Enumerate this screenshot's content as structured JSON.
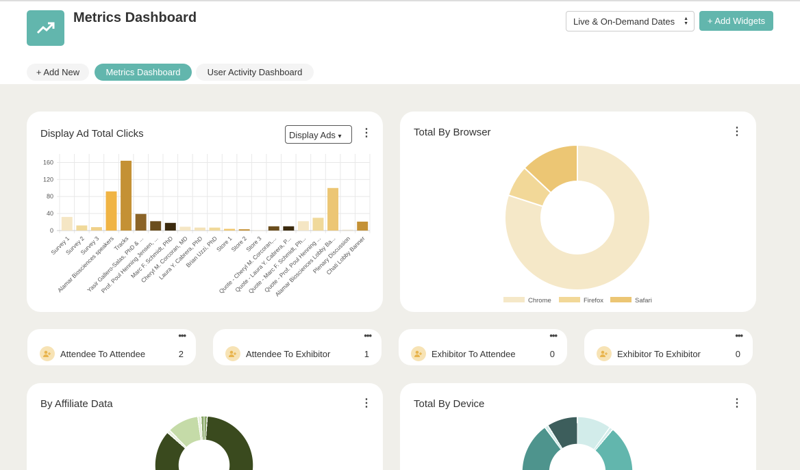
{
  "header": {
    "title": "Metrics Dashboard",
    "date_select": "Live & On-Demand Dates",
    "add_widgets": "+ Add Widgets",
    "logo_icon": "trending-up-icon"
  },
  "tabs": [
    {
      "label": "+ Add New"
    },
    {
      "label": "Metrics Dashboard",
      "active": true
    },
    {
      "label": "User Activity Dashboard"
    }
  ],
  "display_ads": {
    "title": "Display Ad Total Clicks",
    "dropdown": "Display Ads"
  },
  "browser": {
    "title": "Total By Browser"
  },
  "stats": [
    {
      "label": "Attendee To Attendee",
      "value": "2"
    },
    {
      "label": "Attendee To Exhibitor",
      "value": "1"
    },
    {
      "label": "Exhibitor To Attendee",
      "value": "0"
    },
    {
      "label": "Exhibitor To Exhibitor",
      "value": "0"
    }
  ],
  "affiliate": {
    "title": "By Affiliate Data"
  },
  "device": {
    "title": "Total By Device"
  },
  "chart_data": [
    {
      "type": "bar",
      "title": "Display Ad Total Clicks",
      "xlabel": "",
      "ylabel": "",
      "ylim": [
        0,
        180
      ],
      "yticks": [
        0,
        40,
        80,
        120,
        160
      ],
      "grid": true,
      "categories": [
        "Survey 1",
        "Survey 2",
        "Survey 3",
        "Alamar Biosciences speakers",
        "Tracks",
        "Yasir Gallero-Salas, PhD & ...",
        "Prof. Poul Henning Jensen, ...",
        "Marc F. Schmidt, PhD",
        "Cheryl M. Corcoran, MD",
        "Laura Y. Cabrera, PhD",
        "Brian Uzzi, PhD",
        "Store 1",
        "Store 2",
        "Store 3",
        "Quote - Cheryl M. Corcoran,...",
        "Quote - Laura Y. Cabrera, P...",
        "Quote - Marc F. Schmidt, Ph...",
        "Quote - Prof. Poul Henning ...",
        "Alamar Biosciences Lobby Ba...",
        "Plenary Discussion",
        "Chati Lobby Banner"
      ],
      "values": [
        32,
        12,
        8,
        92,
        164,
        39,
        22,
        18,
        9,
        7,
        7,
        4,
        3,
        1,
        10,
        10,
        22,
        30,
        100,
        2,
        21
      ],
      "colors": [
        "#f5e6c4",
        "#f0d99a",
        "#f0d18a",
        "#f0b444",
        "#c49135",
        "#8b6428",
        "#6b4e1e",
        "#3b2a0e",
        "#f5e6c4",
        "#f3e2b8",
        "#f0d99a",
        "#f0c870",
        "#c49135",
        "#e9e0cc",
        "#6b4e1e",
        "#3b2a0e",
        "#f5e6c4",
        "#f0d99a",
        "#ecc674",
        "#e9e0cc",
        "#c49135"
      ]
    },
    {
      "type": "pie",
      "title": "Total By Browser",
      "legend": "bottom",
      "labels": [
        "Chrome",
        "Firefox",
        "Safari"
      ],
      "values": [
        80,
        7,
        13
      ],
      "colors": [
        "#f5e8c8",
        "#f2d898",
        "#ecc674"
      ]
    },
    {
      "type": "pie",
      "title": "By Affiliate Data",
      "values": [
        1,
        45,
        38,
        1,
        10,
        1,
        1
      ],
      "colors": [
        "#8aa868",
        "#3a4a1e",
        "#3a4a1e",
        "#e8f0dc",
        "#c5dba8",
        "#e8f0dc",
        "#8aa868"
      ]
    },
    {
      "type": "pie",
      "title": "Total By Device",
      "values": [
        10,
        1,
        37,
        42,
        1,
        9
      ],
      "colors": [
        "#d2ecea",
        "#d2ecea",
        "#62b6ad",
        "#4e948d",
        "#d2ecea",
        "#3d5e5c"
      ]
    }
  ]
}
